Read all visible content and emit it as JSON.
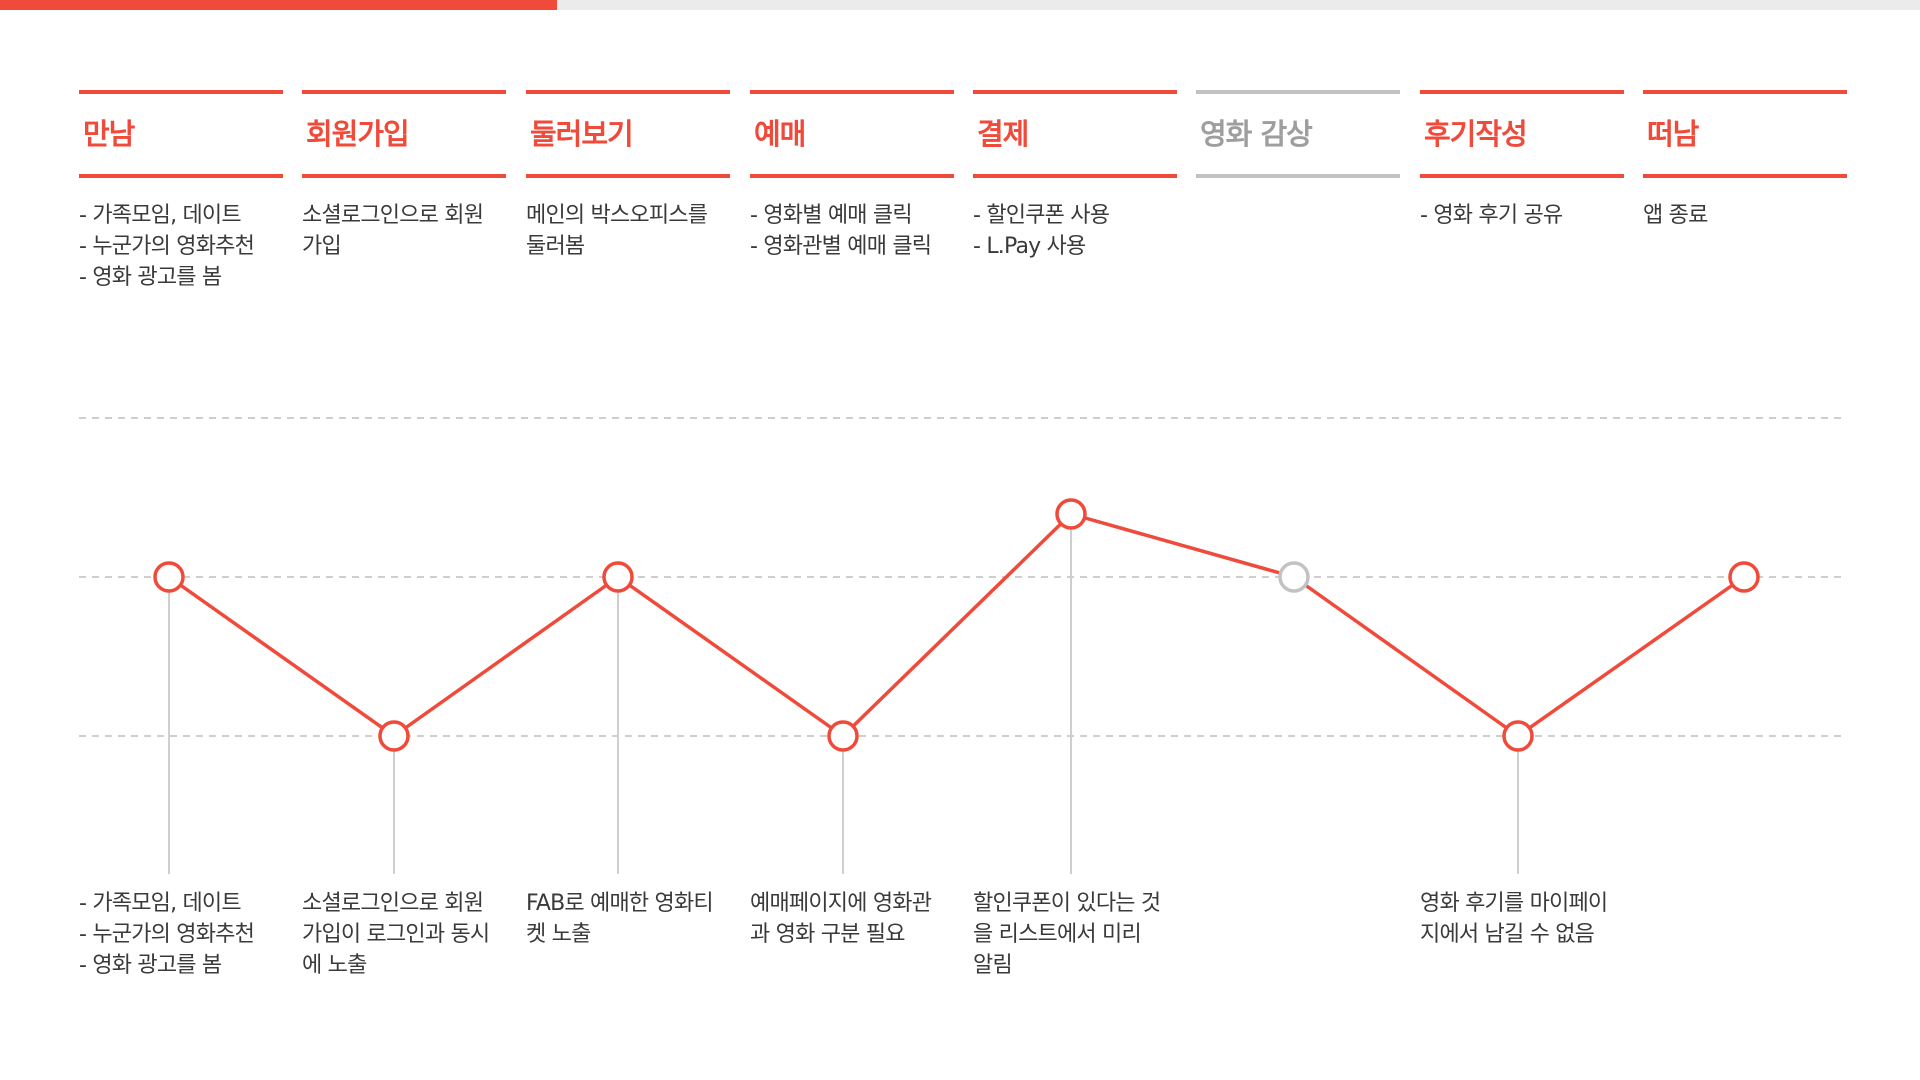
{
  "progress": {
    "fraction": 0.29
  },
  "colors": {
    "accent": "#f04a3a",
    "inactive": "#c2c2c2",
    "track": "#ebebeb",
    "text": "#3a3a3a"
  },
  "stages": [
    {
      "name": "만남",
      "active": true,
      "top_desc": [
        "- 가족모임, 데이트",
        "- 누군가의 영화추천",
        "- 영화 광고를 봄"
      ],
      "bottom_desc": [
        "- 가족모임, 데이트",
        "- 누군가의 영화추천",
        "- 영화 광고를 봄"
      ]
    },
    {
      "name": "회원가입",
      "active": true,
      "top_desc": [
        "소셜로그인으로 회원",
        "가입"
      ],
      "bottom_desc": [
        "소셜로그인으로 회원",
        "가입이 로그인과 동시",
        "에 노출"
      ]
    },
    {
      "name": "둘러보기",
      "active": true,
      "top_desc": [
        "메인의 박스오피스를",
        "둘러봄"
      ],
      "bottom_desc": [
        "FAB로 예매한 영화티",
        "켓 노출"
      ]
    },
    {
      "name": "예매",
      "active": true,
      "top_desc": [
        "- 영화별 예매 클릭",
        "- 영화관별 예매 클릭"
      ],
      "bottom_desc": [
        "예매페이지에 영화관",
        "과 영화 구분 필요"
      ]
    },
    {
      "name": "결제",
      "active": true,
      "top_desc": [
        "- 할인쿠폰 사용",
        "- L.Pay 사용"
      ],
      "bottom_desc": [
        "할인쿠폰이 있다는 것",
        "을 리스트에서 미리",
        "알림"
      ]
    },
    {
      "name": "영화 감상",
      "active": false,
      "top_desc": [],
      "bottom_desc": []
    },
    {
      "name": "후기작성",
      "active": true,
      "top_desc": [
        "- 영화 후기 공유"
      ],
      "bottom_desc": [
        "영화 후기를 마이페이",
        "지에서 남길 수 없음"
      ]
    },
    {
      "name": "떠남",
      "active": true,
      "top_desc": [
        "앱 종료"
      ],
      "bottom_desc": []
    }
  ],
  "chart_data": {
    "type": "line",
    "levels": 3,
    "values": [
      2,
      1,
      2,
      1,
      3,
      2,
      1,
      2
    ],
    "point_states": [
      "active",
      "active",
      "active",
      "active",
      "active",
      "inactive",
      "active",
      "active"
    ],
    "ylim": [
      0,
      4
    ]
  }
}
